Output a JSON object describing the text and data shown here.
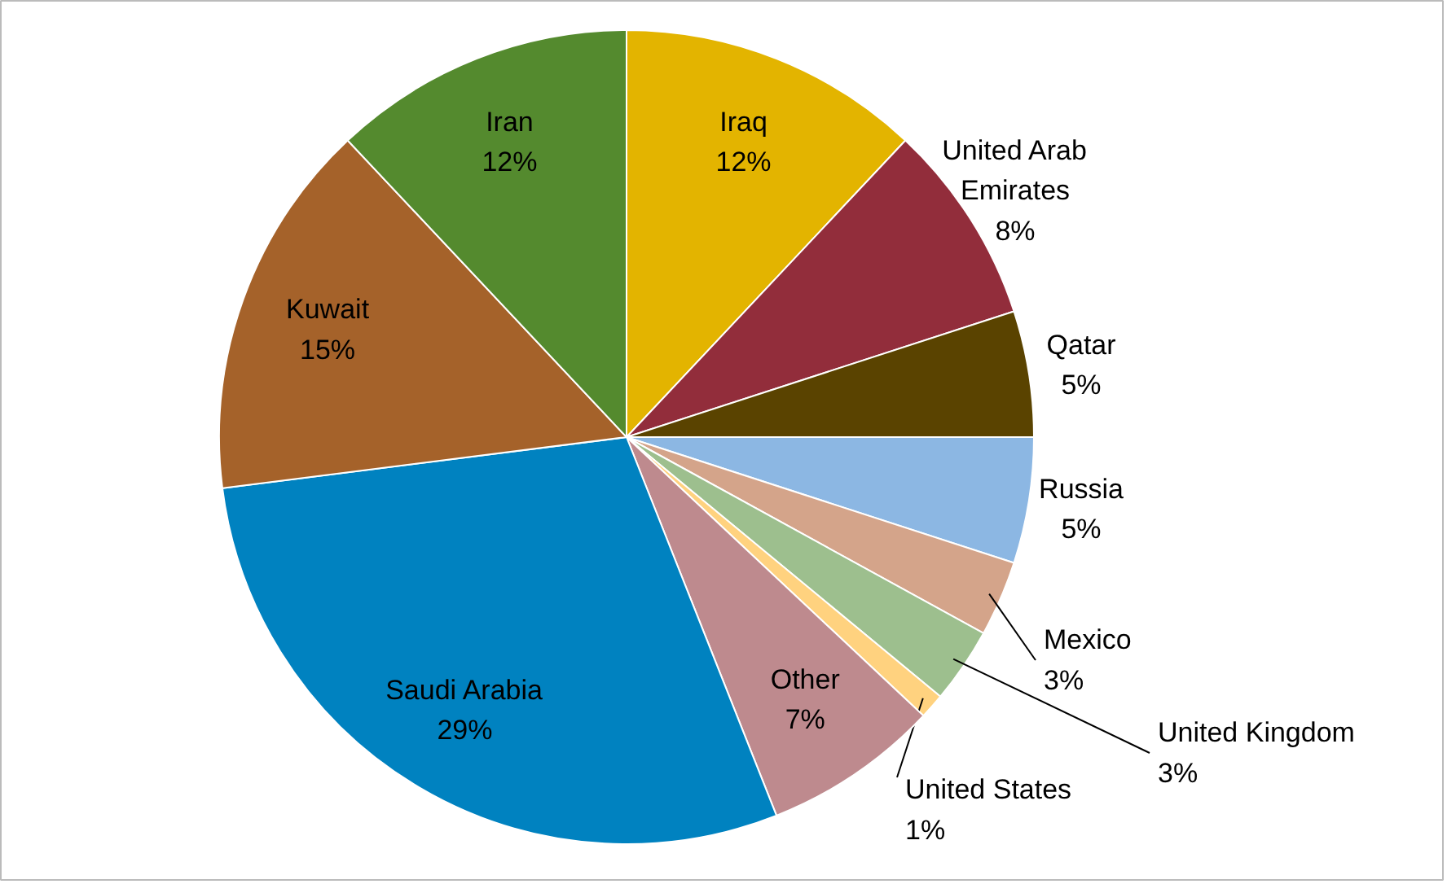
{
  "chart_data": {
    "type": "pie",
    "categories": [
      "Iraq",
      "United Arab Emirates",
      "Qatar",
      "Russia",
      "Mexico",
      "United Kingdom",
      "United States",
      "Other",
      "Saudi Arabia",
      "Kuwait",
      "Iran"
    ],
    "values": [
      12,
      8,
      5,
      5,
      3,
      3,
      1,
      7,
      29,
      15,
      12
    ],
    "value_labels": [
      "12%",
      "8%",
      "5%",
      "5%",
      "3%",
      "3%",
      "1%",
      "7%",
      "29%",
      "15%",
      "12%"
    ],
    "colors": [
      "#e3b400",
      "#922d3b",
      "#5a4300",
      "#8cb7e3",
      "#d4a48a",
      "#9dbf8e",
      "#ffd27f",
      "#be8a8e",
      "#0082c0",
      "#a5622a",
      "#548a2e"
    ]
  }
}
